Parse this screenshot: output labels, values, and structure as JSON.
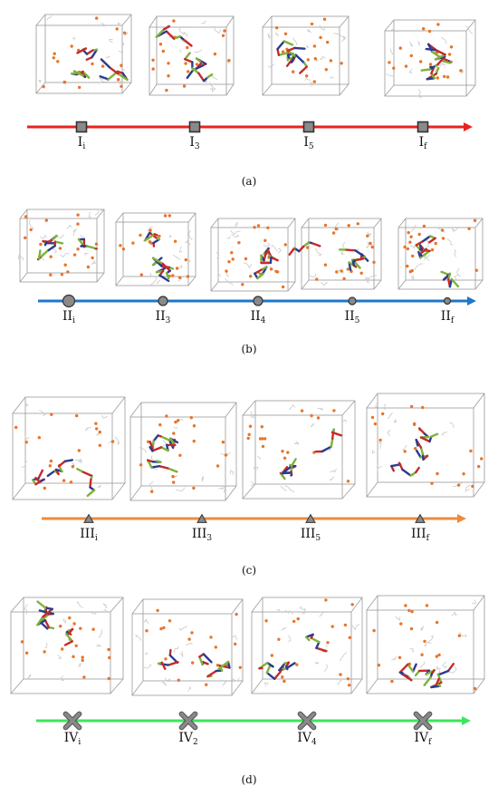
{
  "panels": [
    {
      "caption": "(a)",
      "axis_color": "#e8231f",
      "marker_shape": "square",
      "stages": [
        {
          "base": "I",
          "sub": "i"
        },
        {
          "base": "I",
          "sub": "3"
        },
        {
          "base": "I",
          "sub": "5"
        },
        {
          "base": "I",
          "sub": "f"
        }
      ]
    },
    {
      "caption": "(b)",
      "axis_color": "#1f77c8",
      "marker_shape": "circle",
      "stages": [
        {
          "base": "II",
          "sub": "i"
        },
        {
          "base": "II",
          "sub": "3"
        },
        {
          "base": "II",
          "sub": "4"
        },
        {
          "base": "II",
          "sub": "5"
        },
        {
          "base": "II",
          "sub": "f"
        }
      ]
    },
    {
      "caption": "(c)",
      "axis_color": "#ee8a3c",
      "marker_shape": "triangle",
      "stages": [
        {
          "base": "III",
          "sub": "i"
        },
        {
          "base": "III",
          "sub": "3"
        },
        {
          "base": "III",
          "sub": "5"
        },
        {
          "base": "III",
          "sub": "f"
        }
      ]
    },
    {
      "caption": "(d)",
      "axis_color": "#3de65a",
      "marker_shape": "x",
      "stages": [
        {
          "base": "IV",
          "sub": "i"
        },
        {
          "base": "IV",
          "sub": "2"
        },
        {
          "base": "IV",
          "sub": "4"
        },
        {
          "base": "IV",
          "sub": "f"
        }
      ]
    }
  ],
  "colors": {
    "cube_edge": "#9a9a9a",
    "particle": "#e8742a",
    "chain_red": "#c62a2a",
    "chain_blue": "#2a3c8f",
    "chain_green": "#7fb23a",
    "marker_fill": "#8a8a8a",
    "marker_stroke": "#333333"
  }
}
